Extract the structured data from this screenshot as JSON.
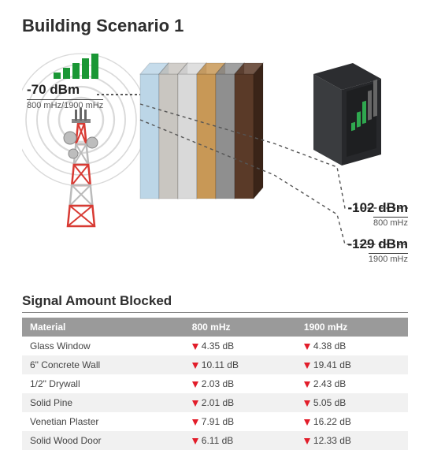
{
  "title": "Building Scenario 1",
  "source": {
    "dbm": "-70 dBm",
    "freq": "800 mHz/1900 mHz",
    "bar_color": "#1a9735",
    "bars": 5
  },
  "results": [
    {
      "dbm": "-102 dBm",
      "freq": "800 mHz"
    },
    {
      "dbm": "-129 dBm",
      "freq": "1900 mHz"
    }
  ],
  "phone": {
    "body_color": "#3a3c3f",
    "screen_color": "#1e1f21",
    "bars": 5,
    "bar_colors": [
      "#2fa84f",
      "#2fa84f",
      "#2fa84f",
      "#666666",
      "#666666"
    ]
  },
  "walls": [
    {
      "light": "#bcd6e7",
      "dark": "#7ba6c4"
    },
    {
      "light": "#c9c6c1",
      "dark": "#8b8984"
    },
    {
      "light": "#d9d9d9",
      "dark": "#a9a9a9"
    },
    {
      "light": "#c89856",
      "dark": "#8a6530"
    },
    {
      "light": "#8f8f8f",
      "dark": "#5e5e5e"
    },
    {
      "light": "#5a3a28",
      "dark": "#3a2418"
    }
  ],
  "tower": {
    "red": "#d83a33",
    "white": "#ffffff",
    "gray": "#bdbdbd"
  },
  "table": {
    "title": "Signal Amount Blocked",
    "headers": [
      "Material",
      "800 mHz",
      "1900 mHz"
    ],
    "arrow_color": "#e21d2a",
    "rows": [
      {
        "material": "Glass Window",
        "v800": "4.35 dB",
        "v1900": "4.38 dB"
      },
      {
        "material": "6\" Concrete Wall",
        "v800": "10.11 dB",
        "v1900": "19.41 dB"
      },
      {
        "material": "1/2\" Drywall",
        "v800": "2.03 dB",
        "v1900": "2.43 dB"
      },
      {
        "material": "Solid Pine",
        "v800": "2.01 dB",
        "v1900": "5.05 dB"
      },
      {
        "material": "Venetian Plaster",
        "v800": "7.91 dB",
        "v1900": "16.22 dB"
      },
      {
        "material": "Solid Wood Door",
        "v800": "6.11 dB",
        "v1900": "12.33 dB"
      }
    ]
  },
  "colors": {
    "dash": "#555555",
    "signal_ring": "#d9d9d9"
  }
}
